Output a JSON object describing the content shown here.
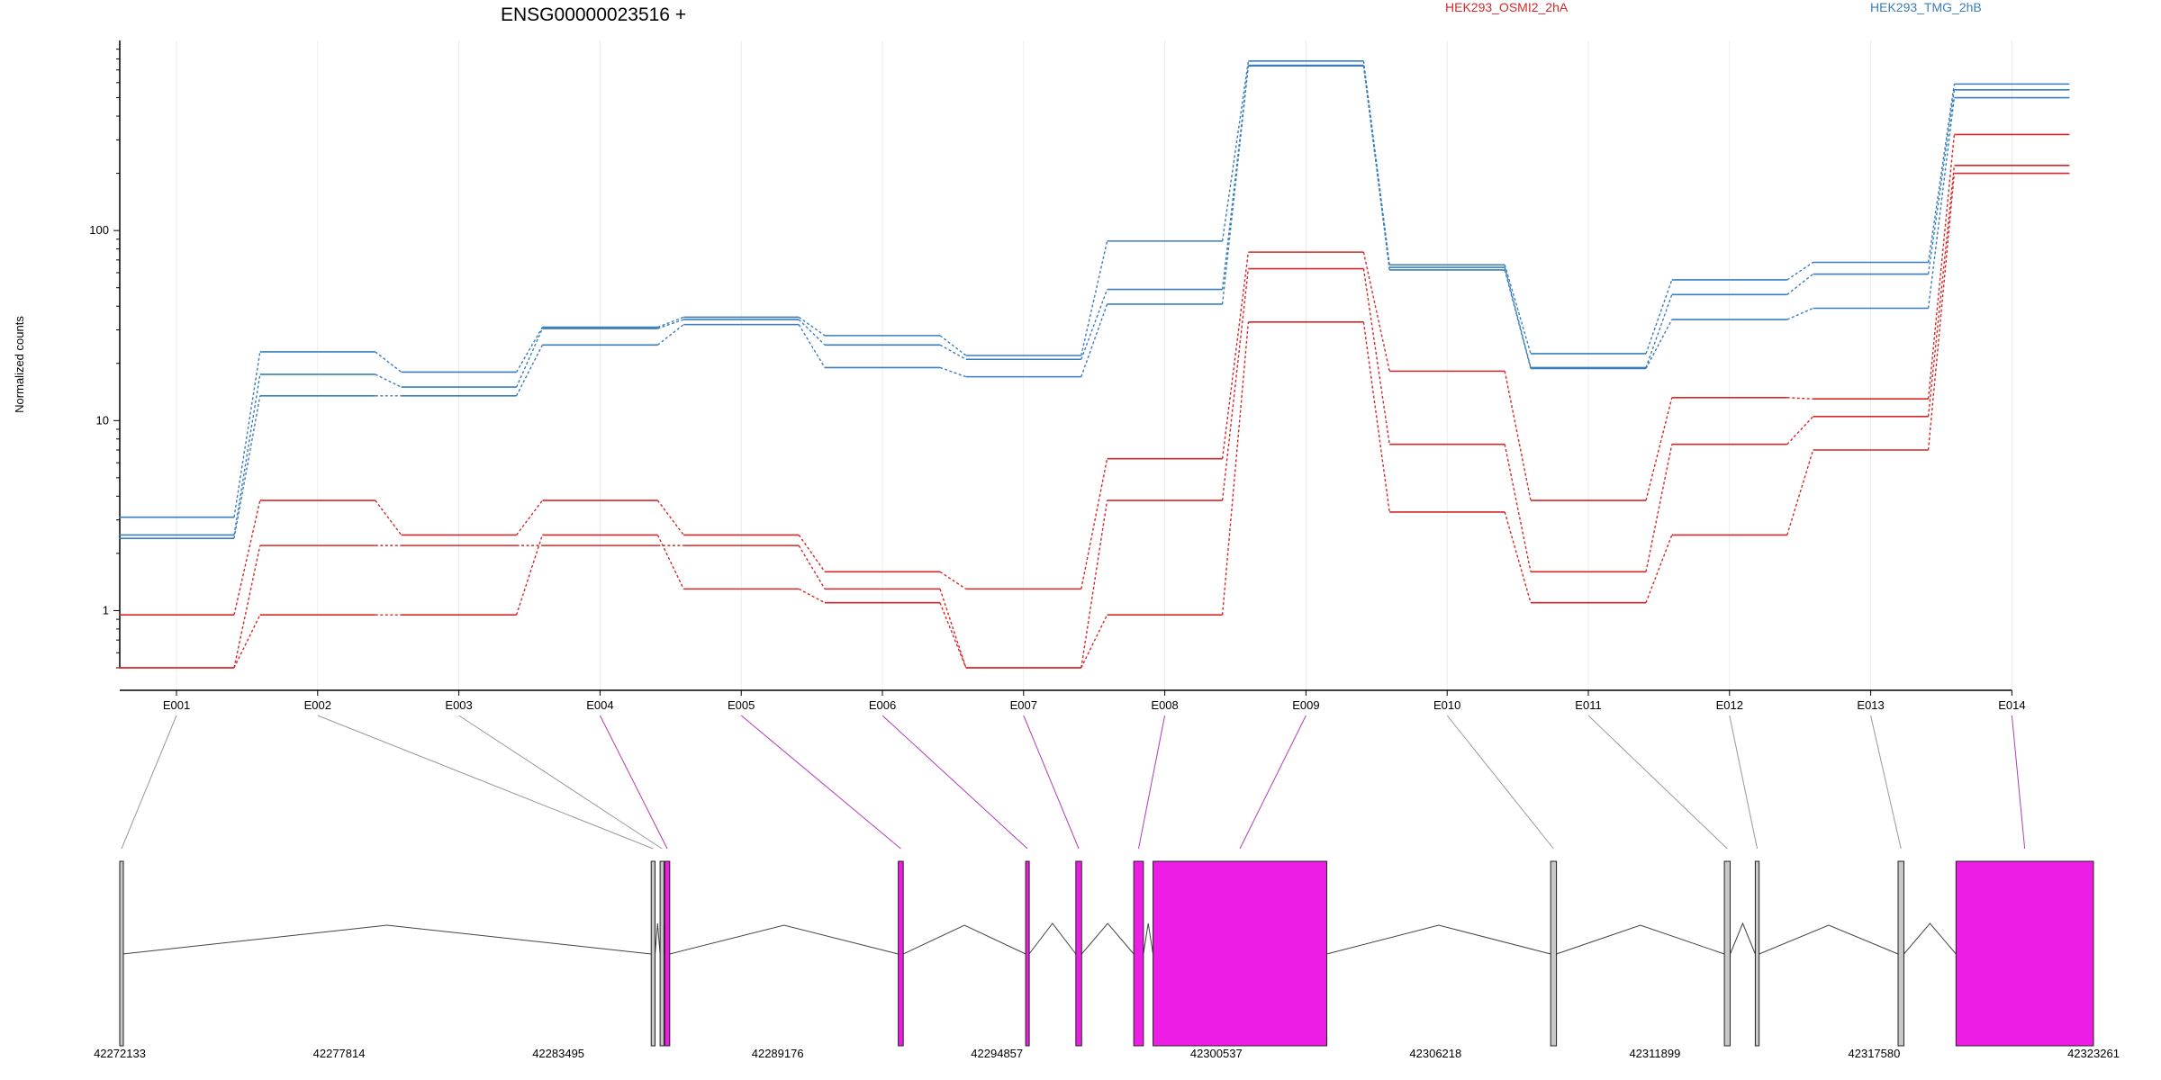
{
  "chart_data": {
    "type": "line",
    "title": "ENSG00000023516 +",
    "ylabel": "Normalized counts",
    "xlabel": "",
    "yscale": "log",
    "ylim": [
      0.5,
      1000
    ],
    "yticks": [
      {
        "value": 1,
        "label": "1"
      },
      {
        "value": 10,
        "label": "10"
      },
      {
        "value": 100,
        "label": "100"
      }
    ],
    "grid": "vertical",
    "legend": [
      {
        "name": "HEK293_OSMI2_2hA",
        "color": "#d62728"
      },
      {
        "name": "HEK293_TMG_2hB",
        "color": "#3a7dbb"
      }
    ],
    "categories": [
      "E001",
      "E002",
      "E003",
      "E004",
      "E005",
      "E006",
      "E007",
      "E008",
      "E009",
      "E010",
      "E011",
      "E012",
      "E013",
      "E014"
    ],
    "series": [
      {
        "color": "#3a7dbb",
        "values": [
          3.1,
          23,
          18,
          31,
          35,
          28,
          22,
          88,
          780,
          66,
          22.5,
          55,
          68,
          590
        ]
      },
      {
        "color": "#3a7dbb",
        "values": [
          2.5,
          17.5,
          15,
          30.5,
          34,
          25,
          21,
          49,
          740,
          64,
          19,
          46,
          59,
          550
        ]
      },
      {
        "color": "#3a7dbb",
        "values": [
          2.4,
          13.5,
          13.5,
          25,
          32,
          19,
          17,
          41,
          735,
          62,
          18.8,
          34,
          39,
          500
        ]
      },
      {
        "color": "#d62728",
        "values": [
          0.95,
          3.8,
          2.5,
          3.8,
          2.5,
          1.6,
          1.3,
          6.3,
          77,
          18.2,
          3.8,
          13.2,
          13,
          320
        ]
      },
      {
        "color": "#d62728",
        "values": [
          0.5,
          2.2,
          2.2,
          2.2,
          2.2,
          1.3,
          0.5,
          3.8,
          63,
          7.5,
          1.6,
          7.5,
          10.5,
          220
        ]
      },
      {
        "color": "#d62728",
        "values": [
          0.5,
          0.95,
          0.95,
          2.5,
          1.3,
          1.1,
          0.5,
          0.95,
          33,
          3.3,
          1.1,
          2.5,
          7,
          200
        ]
      }
    ],
    "gene_model": {
      "start": 42272133,
      "end": 42323261,
      "coordinate_ticks": [
        "42272133",
        "42277814",
        "42283495",
        "42289176",
        "42294857",
        "42300537",
        "42306218",
        "42311899",
        "42317580",
        "42323261"
      ],
      "exons": [
        {
          "id": "E001",
          "start": 42272133,
          "end": 42272210,
          "color": "#c8c8c8"
        },
        {
          "id": "E002",
          "start": 42285900,
          "end": 42286000,
          "color": "#c8c8c8"
        },
        {
          "id": "E003",
          "start": 42286130,
          "end": 42286230,
          "color": "#c8c8c8"
        },
        {
          "id": "E004",
          "start": 42286250,
          "end": 42286380,
          "color": "#ee1de5"
        },
        {
          "id": "E005",
          "start": 42292300,
          "end": 42292430,
          "color": "#ee1de5"
        },
        {
          "id": "E006",
          "start": 42295600,
          "end": 42295690,
          "color": "#ee1de5"
        },
        {
          "id": "E007",
          "start": 42296900,
          "end": 42297050,
          "color": "#ee1de5"
        },
        {
          "id": "E008",
          "start": 42298400,
          "end": 42298650,
          "color": "#ee1de5"
        },
        {
          "id": "E009",
          "start": 42298900,
          "end": 42303400,
          "color": "#ee1de5"
        },
        {
          "id": "E010",
          "start": 42309200,
          "end": 42309350,
          "color": "#c8c8c8"
        },
        {
          "id": "E011",
          "start": 42313700,
          "end": 42313850,
          "color": "#c8c8c8"
        },
        {
          "id": "E012",
          "start": 42314500,
          "end": 42314600,
          "color": "#c8c8c8"
        },
        {
          "id": "E013",
          "start": 42318200,
          "end": 42318350,
          "color": "#c8c8c8"
        },
        {
          "id": "E014",
          "start": 42319700,
          "end": 42323261,
          "color": "#ee1de5"
        }
      ]
    }
  }
}
